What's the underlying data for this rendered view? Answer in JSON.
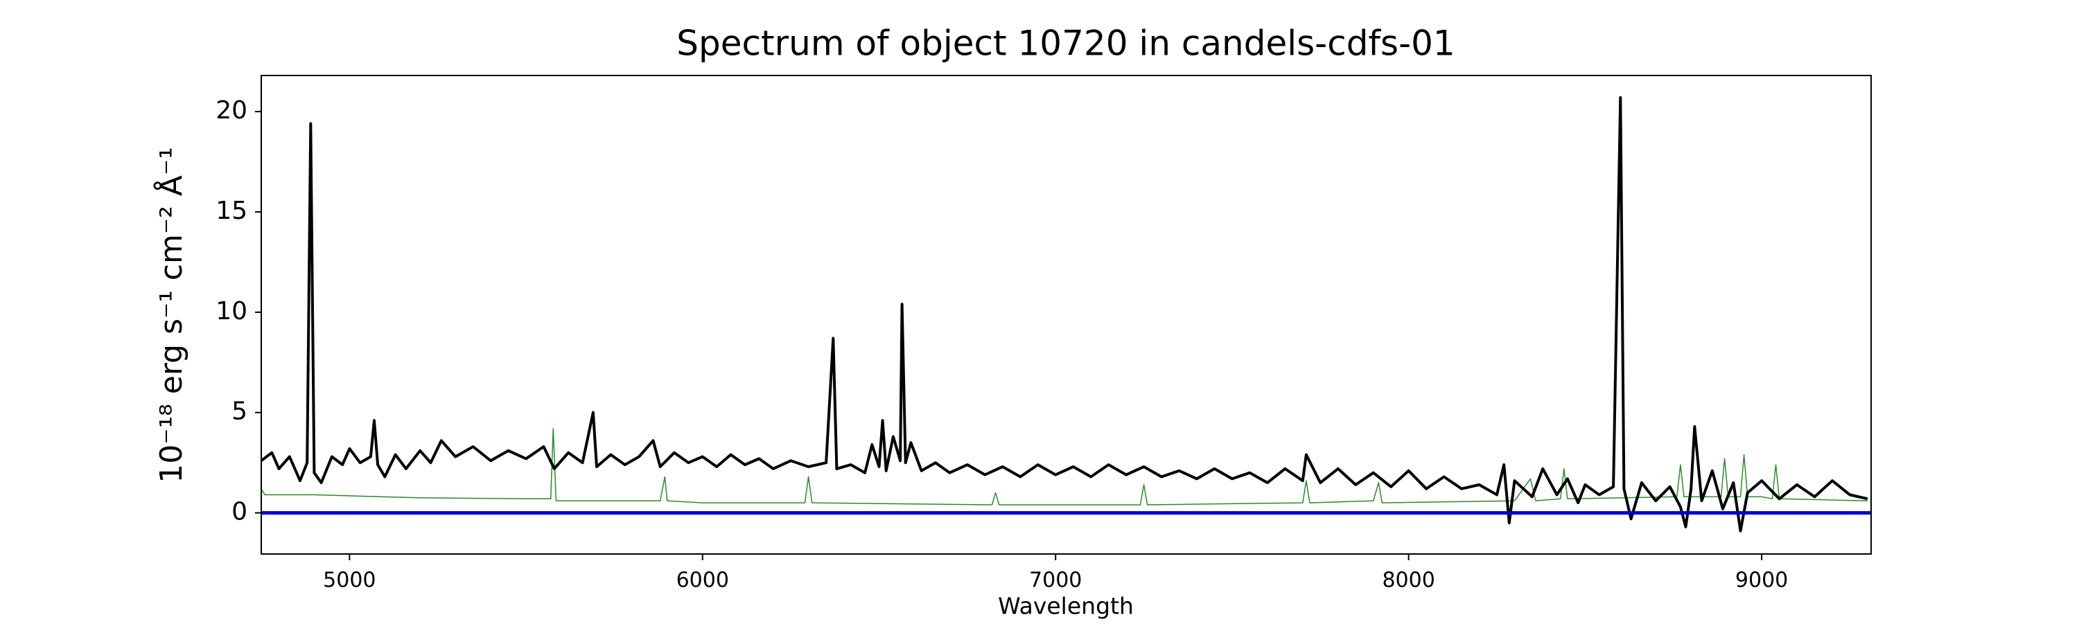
{
  "chart_data": {
    "type": "line",
    "title": "Spectrum of object 10720 in candels-cdfs-01",
    "x_label": "Wavelength",
    "y_label": "10⁻¹⁸ erg s⁻¹ cm⁻² Å⁻¹",
    "xlim": [
      4750,
      9310
    ],
    "ylim": [
      -2.05,
      21.8
    ],
    "xticks": [
      5000,
      6000,
      7000,
      8000,
      9000
    ],
    "yticks": [
      0,
      5,
      10,
      15,
      20
    ],
    "series": [
      {
        "color": "#000000",
        "width": 4,
        "x": [
          4750,
          4780,
          4800,
          4830,
          4860,
          4880,
          4890,
          4900,
          4920,
          4950,
          4980,
          5000,
          5030,
          5060,
          5070,
          5080,
          5100,
          5130,
          5160,
          5200,
          5230,
          5260,
          5300,
          5350,
          5400,
          5450,
          5500,
          5550,
          5580,
          5620,
          5660,
          5690,
          5700,
          5740,
          5780,
          5820,
          5860,
          5880,
          5920,
          5960,
          6000,
          6040,
          6080,
          6120,
          6160,
          6200,
          6250,
          6300,
          6350,
          6370,
          6380,
          6420,
          6460,
          6480,
          6500,
          6510,
          6520,
          6540,
          6560,
          6565,
          6575,
          6590,
          6620,
          6660,
          6700,
          6750,
          6800,
          6850,
          6900,
          6950,
          7000,
          7050,
          7100,
          7150,
          7200,
          7250,
          7300,
          7350,
          7400,
          7450,
          7500,
          7550,
          7600,
          7650,
          7700,
          7710,
          7750,
          7800,
          7850,
          7900,
          7950,
          8000,
          8050,
          8100,
          8150,
          8200,
          8250,
          8270,
          8285,
          8300,
          8350,
          8380,
          8420,
          8450,
          8480,
          8500,
          8540,
          8580,
          8600,
          8610,
          8630,
          8660,
          8700,
          8740,
          8770,
          8785,
          8800,
          8810,
          8830,
          8860,
          8890,
          8920,
          8940,
          8960,
          9000,
          9050,
          9100,
          9150,
          9200,
          9250,
          9300
        ],
        "values": [
          2.6,
          3.0,
          2.2,
          2.8,
          1.6,
          2.5,
          19.4,
          2.0,
          1.5,
          2.8,
          2.4,
          3.2,
          2.5,
          2.8,
          4.6,
          2.4,
          1.8,
          2.9,
          2.2,
          3.1,
          2.5,
          3.6,
          2.8,
          3.3,
          2.6,
          3.1,
          2.7,
          3.3,
          2.2,
          3.0,
          2.5,
          5.0,
          2.3,
          2.9,
          2.4,
          2.8,
          3.6,
          2.3,
          3.0,
          2.5,
          2.8,
          2.3,
          2.9,
          2.4,
          2.7,
          2.2,
          2.6,
          2.3,
          2.5,
          8.7,
          2.2,
          2.4,
          2.0,
          3.4,
          2.3,
          4.6,
          2.1,
          3.8,
          2.6,
          10.4,
          2.5,
          3.5,
          2.1,
          2.5,
          2.0,
          2.4,
          1.9,
          2.3,
          1.8,
          2.4,
          1.9,
          2.3,
          1.8,
          2.4,
          1.9,
          2.3,
          1.8,
          2.1,
          1.7,
          2.2,
          1.7,
          2.0,
          1.5,
          2.2,
          1.6,
          2.9,
          1.5,
          2.2,
          1.4,
          2.0,
          1.3,
          2.1,
          1.2,
          1.8,
          1.2,
          1.4,
          0.9,
          2.4,
          -0.5,
          1.6,
          0.8,
          2.2,
          0.9,
          1.7,
          0.5,
          1.4,
          0.9,
          1.3,
          20.7,
          1.2,
          -0.3,
          1.5,
          0.6,
          1.3,
          0.3,
          -0.7,
          1.2,
          4.3,
          0.6,
          2.1,
          0.2,
          1.5,
          -0.9,
          1.0,
          1.6,
          0.7,
          1.4,
          0.8,
          1.6,
          0.9,
          0.7
        ]
      },
      {
        "color": "#2a8a2a",
        "width": 1.5,
        "x": [
          4750,
          4760,
          4900,
          5200,
          5500,
          5570,
          5577,
          5585,
          5880,
          5893,
          5900,
          6000,
          6290,
          6300,
          6310,
          6820,
          6830,
          6840,
          7240,
          7250,
          7260,
          7700,
          7710,
          7720,
          7900,
          7915,
          7925,
          8300,
          8345,
          8360,
          8430,
          8440,
          8450,
          8760,
          8770,
          8780,
          8885,
          8895,
          8905,
          8940,
          8950,
          8960,
          9000,
          9030,
          9040,
          9050,
          9300
        ],
        "values": [
          1.2,
          0.9,
          0.9,
          0.75,
          0.7,
          0.7,
          4.2,
          0.6,
          0.6,
          1.8,
          0.6,
          0.5,
          0.5,
          1.8,
          0.5,
          0.4,
          1.0,
          0.4,
          0.4,
          1.4,
          0.4,
          0.5,
          1.6,
          0.5,
          0.6,
          1.5,
          0.5,
          0.6,
          1.7,
          0.6,
          0.7,
          2.2,
          0.7,
          0.8,
          2.4,
          0.8,
          0.8,
          2.7,
          0.8,
          0.8,
          2.9,
          0.8,
          0.8,
          0.7,
          2.4,
          0.7,
          0.6
        ]
      },
      {
        "color": "#0000cc",
        "width": 5,
        "x": [
          4750,
          9310
        ],
        "values": [
          0,
          0
        ]
      }
    ]
  }
}
